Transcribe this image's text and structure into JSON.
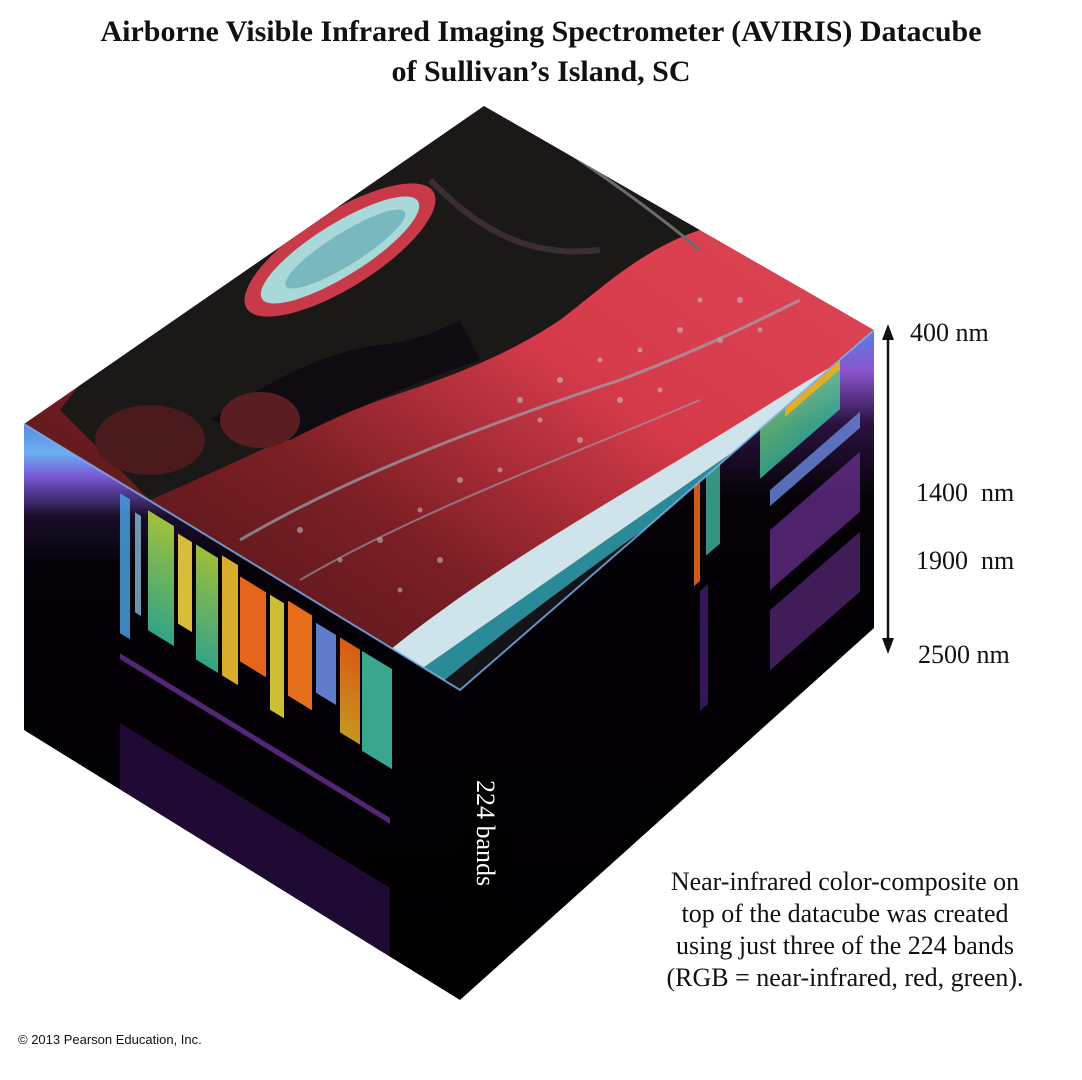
{
  "title": {
    "line1": "Airborne Visible Infrared Imaging Spectrometer (AVIRIS) Datacube",
    "line2": "of Sullivan’s Island, SC"
  },
  "wavelengths": {
    "top": "400 nm",
    "mid1": "1400  nm",
    "mid2": "1900  nm",
    "bottom": "2500 nm"
  },
  "bands_label": "224 bands",
  "caption": {
    "line1": "Near-infrared color-composite on",
    "line2": "top of the datacube was created",
    "line3": "using just three of the 224 bands",
    "line4": "(RGB = near-infrared, red, green)."
  },
  "copyright": "© 2013 Pearson Education, Inc.",
  "colors": {
    "arrow": "#111111",
    "land_red": "#d63a4a",
    "water_dark": "#1b1818",
    "spectral_blue": "#5a74d8",
    "spectral_purple": "#8a3fbf",
    "spectral_hot": "#ff6a1a"
  }
}
